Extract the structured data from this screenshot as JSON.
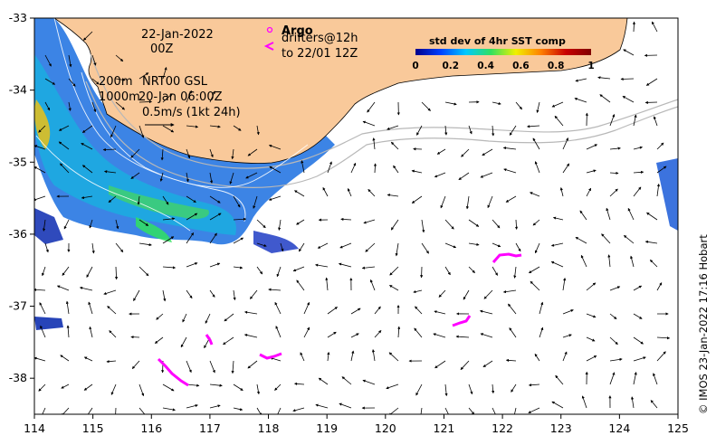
{
  "map": {
    "date_line1": "22-Jan-2022",
    "date_line2": "00Z",
    "iso_200": "200m",
    "iso_1000": "1000m",
    "product": "NRT00 GSL",
    "product_time": "20-Jan 06:00Z",
    "scale_label": "0.5m/s (1kt 24h)",
    "argo_label": "Argo",
    "drifters_label": "drifters@12h",
    "drifters_to": "to 22/01 12Z",
    "credit": "© IMOS 23-Jan-2022 17:16 Hobart",
    "land_color": "#f9c99a",
    "drifter_color": "#ff00ff",
    "extent": {
      "lon": [
        114,
        125
      ],
      "lat": [
        -38.5,
        -33
      ]
    }
  },
  "colorbar": {
    "title": "std dev of 4hr SST comp",
    "ticks": [
      "0",
      "0.2",
      "0.4",
      "0.6",
      "0.8",
      "1"
    ],
    "colors": [
      "#00008b",
      "#0040ff",
      "#00c8ff",
      "#30e060",
      "#f0f000",
      "#ff8000",
      "#c80000",
      "#800000"
    ]
  },
  "axes": {
    "x_ticks": [
      "114",
      "115",
      "116",
      "117",
      "118",
      "119",
      "120",
      "121",
      "122",
      "123",
      "124",
      "125"
    ],
    "y_ticks": [
      "-33",
      "-34",
      "-35",
      "-36",
      "-37",
      "-38"
    ]
  }
}
